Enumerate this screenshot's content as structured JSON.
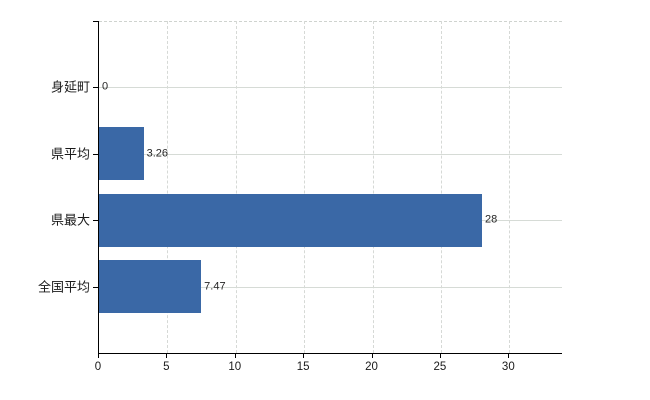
{
  "chart_data": {
    "type": "bar",
    "orientation": "horizontal",
    "title": "",
    "xlabel": "",
    "ylabel": "",
    "categories": [
      "身延町",
      "県平均",
      "県最大",
      "全国平均"
    ],
    "values": [
      0,
      3.26,
      28,
      7.47
    ],
    "value_labels": [
      "0",
      "3.26",
      "28",
      "7.47"
    ],
    "xticks": [
      0,
      5,
      10,
      15,
      20,
      25,
      30
    ],
    "xtick_labels": [
      "0",
      "5",
      "10",
      "15",
      "20",
      "25",
      "30"
    ],
    "xlim": [
      0,
      33.85
    ],
    "grid": true,
    "legend": false,
    "bar_color": "#3a68a6",
    "gridline_color": "#d6d9d6",
    "axis_color": "#000000",
    "text_color": "#1a1a1a",
    "background_color": "#ffffff"
  }
}
